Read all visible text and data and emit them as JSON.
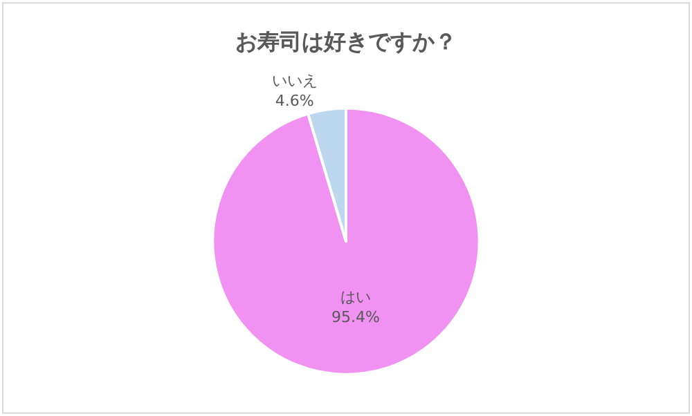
{
  "chart_data": {
    "type": "pie",
    "title": "お寿司は好きですか？",
    "categories": [
      "はい",
      "いいえ"
    ],
    "values": [
      95.4,
      4.6
    ],
    "value_labels": [
      "95.4%",
      "4.6%"
    ],
    "colors": [
      "#f192f2",
      "#bdd7ee"
    ],
    "legend": false
  }
}
